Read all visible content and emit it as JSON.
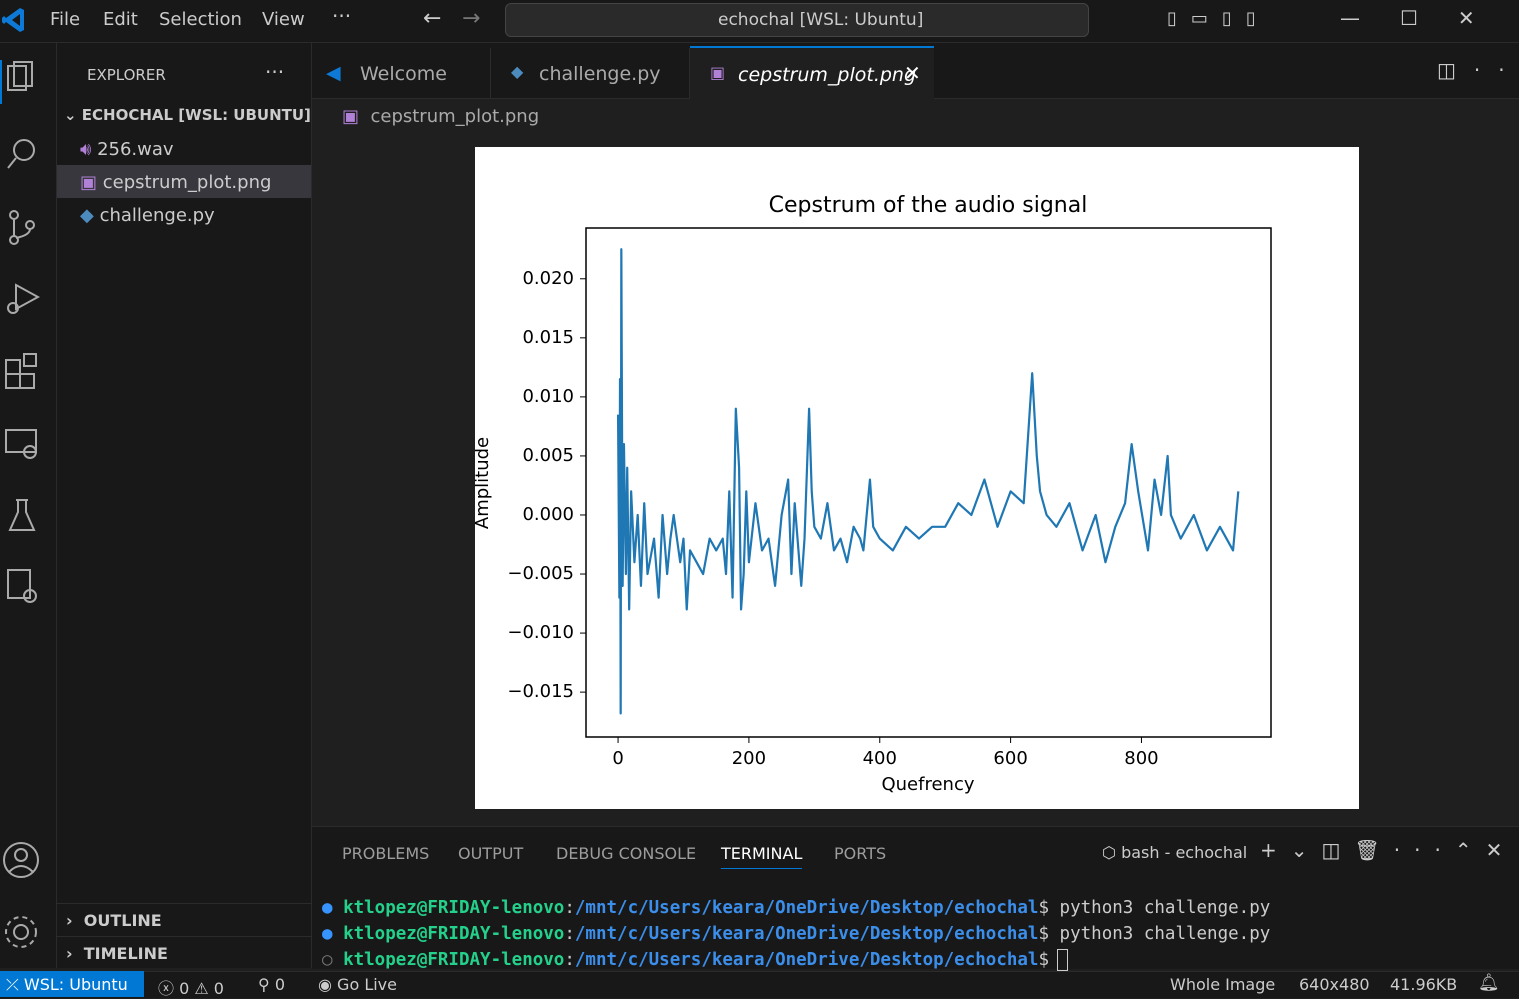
{
  "window": {
    "menu": [
      "File",
      "Edit",
      "Selection",
      "View"
    ],
    "search": "echochal [WSL: Ubuntu]"
  },
  "sidebar": {
    "title": "EXPLORER",
    "folder": "ECHOCHAL [WSL: UBUNTU]",
    "files": [
      "256.wav",
      "cepstrum_plot.png",
      "challenge.py"
    ],
    "outline": "OUTLINE",
    "timeline": "TIMELINE"
  },
  "tabs": [
    "Welcome",
    "challenge.py",
    "cepstrum_plot.png"
  ],
  "breadcrumb": "cepstrum_plot.png",
  "panel": {
    "tabs": [
      "PROBLEMS",
      "OUTPUT",
      "DEBUG CONSOLE",
      "TERMINAL",
      "PORTS"
    ],
    "shell": "bash - echochal",
    "lines": [
      {
        "user": "ktlopez@FRIDAY-lenovo",
        "sep": ":",
        "path": "/mnt/c/Users/keara/OneDrive/Desktop/echochal",
        "cmd": "$ python3 challenge.py"
      },
      {
        "user": "ktlopez@FRIDAY-lenovo",
        "sep": ":",
        "path": "/mnt/c/Users/keara/OneDrive/Desktop/echochal",
        "cmd": "$ python3 challenge.py"
      },
      {
        "user": "ktlopez@FRIDAY-lenovo",
        "sep": ":",
        "path": "/mnt/c/Users/keara/OneDrive/Desktop/echochal",
        "cmd": "$"
      }
    ]
  },
  "status": {
    "remote": "WSL: Ubuntu",
    "errors": "0",
    "warnings": "0",
    "ports": "0",
    "live": "Go Live",
    "zoom": "Whole Image",
    "size": "640x480",
    "filesize": "41.96KB"
  },
  "chart_data": {
    "type": "line",
    "title": "Cepstrum of the audio signal",
    "x_label": "Quefrency",
    "y_label": "Amplitude",
    "xlim": [
      -49,
      998
    ],
    "ylim": [
      -0.0188,
      0.0243
    ],
    "xticks": [
      0,
      200,
      400,
      600,
      800
    ],
    "yticks": [
      {
        "value": -0.015,
        "label": "−0.015"
      },
      {
        "value": -0.01,
        "label": "−0.010"
      },
      {
        "value": -0.005,
        "label": "−0.005"
      },
      {
        "value": 0,
        "label": "0.000"
      },
      0.005,
      {
        "value": 0.01,
        "label": "0.010"
      },
      0.015,
      {
        "value": 0.02,
        "label": "0.020"
      }
    ],
    "series": [
      {
        "name": "cepstrum",
        "color": "#1f77b4",
        "x": [
          0,
          2,
          3,
          4,
          5,
          7,
          9,
          12,
          14,
          17,
          20,
          25,
          30,
          35,
          40,
          45,
          55,
          62,
          68,
          75,
          80,
          85,
          95,
          100,
          105,
          110,
          120,
          130,
          140,
          150,
          160,
          165,
          170,
          175,
          180,
          185,
          188,
          192,
          196,
          200,
          210,
          220,
          230,
          240,
          250,
          260,
          265,
          270,
          280,
          285,
          292,
          296,
          300,
          310,
          320,
          330,
          340,
          350,
          360,
          370,
          375,
          385,
          390,
          400,
          420,
          440,
          460,
          480,
          500,
          520,
          540,
          560,
          580,
          600,
          620,
          633,
          640,
          645,
          655,
          670,
          690,
          710,
          730,
          745,
          760,
          775,
          785,
          795,
          810,
          820,
          830,
          840,
          845,
          860,
          880,
          900,
          920,
          940,
          948
        ],
        "values": [
          0.0085,
          -0.007,
          0.0115,
          -0.0168,
          0.0225,
          -0.006,
          0.006,
          -0.005,
          0.004,
          -0.008,
          0.002,
          -0.004,
          0.0,
          -0.006,
          0.001,
          -0.005,
          -0.002,
          -0.007,
          0.0,
          -0.005,
          -0.002,
          0.0,
          -0.004,
          -0.002,
          -0.008,
          -0.003,
          -0.004,
          -0.005,
          -0.002,
          -0.003,
          -0.002,
          -0.005,
          0.002,
          -0.007,
          0.009,
          0.004,
          -0.008,
          -0.005,
          0.002,
          -0.004,
          0.001,
          -0.003,
          -0.002,
          -0.006,
          0.0,
          0.003,
          -0.005,
          0.001,
          -0.006,
          -0.002,
          0.009,
          0.002,
          -0.001,
          -0.002,
          0.001,
          -0.003,
          -0.002,
          -0.004,
          -0.001,
          -0.002,
          -0.003,
          0.003,
          -0.001,
          -0.002,
          -0.003,
          -0.001,
          -0.002,
          -0.001,
          -0.001,
          0.001,
          0.0,
          0.003,
          -0.001,
          0.002,
          0.001,
          0.012,
          0.005,
          0.002,
          0.0,
          -0.001,
          0.001,
          -0.003,
          0.0,
          -0.004,
          -0.001,
          0.001,
          0.006,
          0.002,
          -0.003,
          0.003,
          0.0,
          0.005,
          0.0,
          -0.002,
          0.0,
          -0.003,
          -0.001,
          -0.003,
          0.002
        ]
      }
    ]
  }
}
